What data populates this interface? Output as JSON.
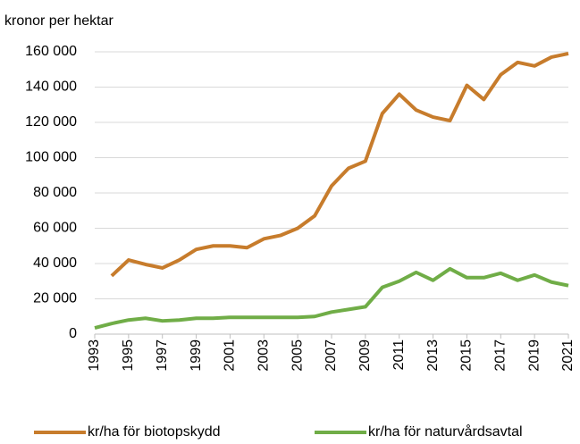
{
  "chart_data": {
    "type": "line",
    "y_axis_label": "kronor per hektar",
    "x": [
      1993,
      1994,
      1995,
      1996,
      1997,
      1998,
      1999,
      2000,
      2001,
      2002,
      2003,
      2004,
      2005,
      2006,
      2007,
      2008,
      2009,
      2010,
      2011,
      2012,
      2013,
      2014,
      2015,
      2016,
      2017,
      2018,
      2019,
      2020,
      2021
    ],
    "series": [
      {
        "name": "kr/ha för biotopskydd",
        "color": "#c77c2c",
        "values": [
          null,
          33000,
          42000,
          39500,
          37500,
          42000,
          48000,
          50000,
          50000,
          49000,
          54000,
          56000,
          60000,
          67000,
          84000,
          94000,
          98000,
          125000,
          136000,
          127000,
          123000,
          121000,
          141000,
          133000,
          147000,
          154000,
          152000,
          157000,
          159000
        ]
      },
      {
        "name": "kr/ha för naturvårdsavtal",
        "color": "#70ad47",
        "values": [
          3500,
          6000,
          8000,
          9000,
          7500,
          8000,
          9000,
          9000,
          9500,
          9500,
          9500,
          9500,
          9500,
          10000,
          12500,
          14000,
          15500,
          26500,
          30000,
          35000,
          30500,
          37000,
          32000,
          32000,
          34500,
          30500,
          33500,
          29500,
          27500
        ]
      }
    ],
    "xlim": [
      1993,
      2021
    ],
    "xticks": [
      1993,
      1995,
      1997,
      1999,
      2001,
      2003,
      2005,
      2007,
      2009,
      2011,
      2013,
      2015,
      2017,
      2019,
      2021
    ],
    "ylim": [
      0,
      160000
    ],
    "yticks": [
      0,
      {
        "value": 20000,
        "label": "20 000"
      },
      {
        "value": 40000,
        "label": "40 000"
      },
      {
        "value": 60000,
        "label": "60 000"
      },
      {
        "value": 80000,
        "label": "80 000"
      },
      {
        "value": 100000,
        "label": "100 000"
      },
      {
        "value": 120000,
        "label": "120 000"
      },
      {
        "value": 140000,
        "label": "140 000"
      },
      {
        "value": 160000,
        "label": "160 000"
      }
    ],
    "grid": true
  }
}
